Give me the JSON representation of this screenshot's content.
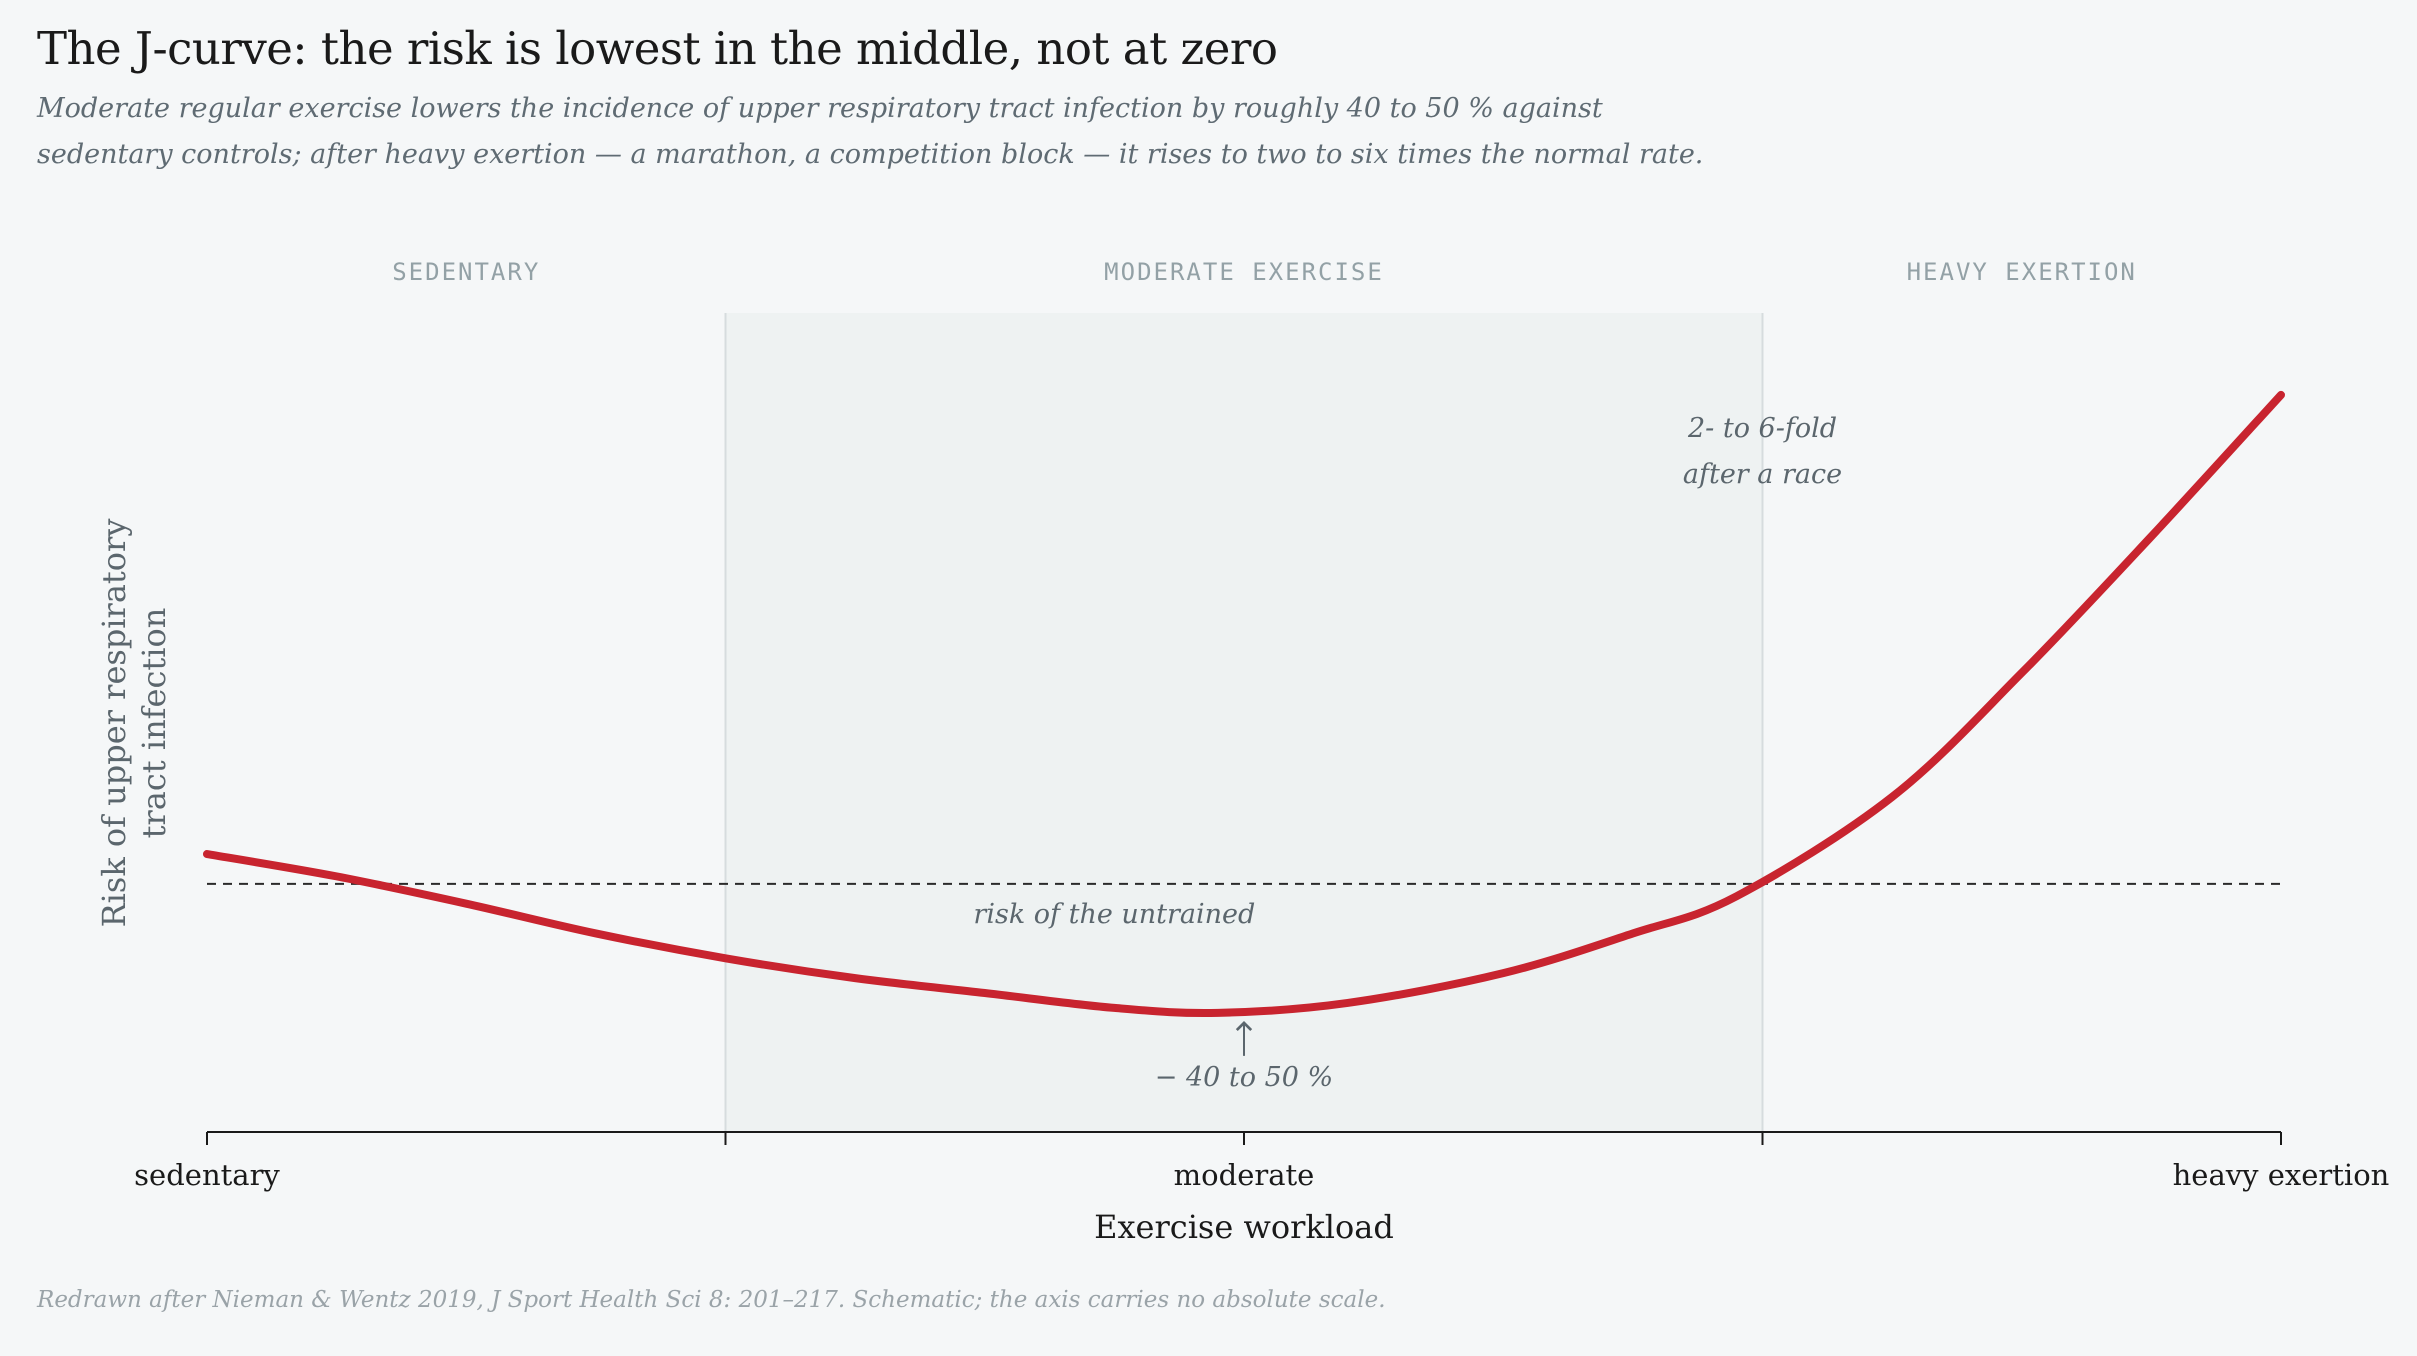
{
  "title": "The J-curve: the risk is lowest in the middle, not at zero",
  "subtitle": "Moderate regular exercise lowers the incidence of upper respiratory tract infection by roughly 40 to 50 % against sedentary controls; after heavy exertion — a marathon, a competition block — it rises to two to six times the normal rate.",
  "source": "Redrawn after Nieman & Wentz 2019, J Sport Health Sci 8: 201–217. Schematic; the axis carries no absolute scale.",
  "colors": {
    "curve": "#c8242f",
    "background": "#f5f7f8",
    "band": "#eef2f2",
    "baseline": "#2b2b2b"
  },
  "chart_data": {
    "type": "line",
    "title": "The J-curve: the risk is lowest in the middle, not at zero",
    "xlabel": "Exercise workload",
    "ylabel_lines": [
      "Risk of upper respiratory",
      "tract infection"
    ],
    "xlim": [
      0,
      4
    ],
    "ylim": [
      0,
      3.3
    ],
    "x_ticks": [
      {
        "x": 0,
        "label": "sedentary"
      },
      {
        "x": 1,
        "label": ""
      },
      {
        "x": 2,
        "label": "moderate"
      },
      {
        "x": 3,
        "label": ""
      },
      {
        "x": 4,
        "label": "heavy exertion"
      }
    ],
    "zones": [
      {
        "label": "SEDENTARY",
        "from": 0,
        "to": 1,
        "shaded": false
      },
      {
        "label": "MODERATE EXERCISE",
        "from": 1,
        "to": 3,
        "shaded": true
      },
      {
        "label": "HEAVY EXERTION",
        "from": 3,
        "to": 4,
        "shaded": false
      }
    ],
    "baseline": {
      "y": 1.0,
      "label": "risk of the untrained",
      "style": "dashed"
    },
    "series": [
      {
        "x": [
          0,
          0.25,
          0.5,
          0.75,
          1.0,
          1.25,
          1.5,
          1.75,
          1.95,
          2.2,
          2.5,
          2.75,
          2.95,
          3.25,
          3.5,
          3.75,
          4.0
        ],
        "y": [
          1.12,
          1.03,
          0.92,
          0.8,
          0.7,
          0.62,
          0.56,
          0.5,
          0.48,
          0.52,
          0.64,
          0.8,
          0.95,
          1.35,
          1.85,
          2.4,
          2.97
        ]
      }
    ],
    "annotations": [
      {
        "text_lines": [
          "2- to 6-fold",
          "after a race"
        ],
        "x": 3.0,
        "y": 2.8
      },
      {
        "text_lines": [
          "− 40 to 50 %"
        ],
        "x": 2.0,
        "y": 0.48,
        "arrow": true
      }
    ]
  }
}
